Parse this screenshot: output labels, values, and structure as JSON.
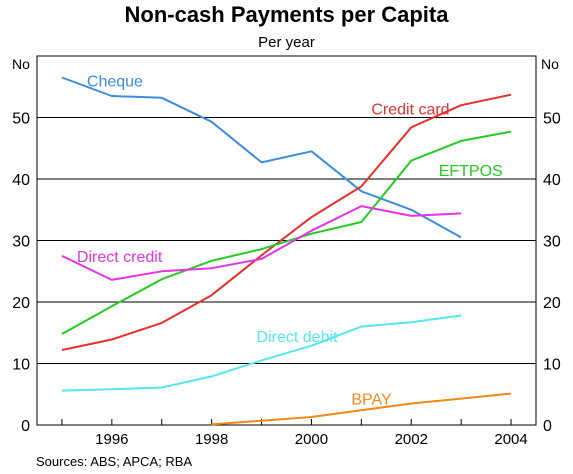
{
  "title": "Non-cash Payments per Capita",
  "subtitle": "Per year",
  "unit_left": "No",
  "unit_right": "No",
  "source": "Sources: ABS; APCA; RBA",
  "chart_data": {
    "type": "line",
    "title": "Non-cash Payments per Capita",
    "subtitle": "Per year",
    "xlabel": "",
    "ylabel": "No",
    "xlim": [
      1994.5,
      2004.5
    ],
    "ylim": [
      0,
      60
    ],
    "yticks": [
      0,
      10,
      20,
      30,
      40,
      50
    ],
    "xticks": [
      1996,
      1998,
      2000,
      2002,
      2004
    ],
    "grid": true,
    "legend": "inline labels",
    "series": [
      {
        "name": "Cheque",
        "color": "#3b8de0",
        "x": [
          1995,
          1996,
          1997,
          1998,
          1999,
          2000,
          2001,
          2002,
          2003
        ],
        "values": [
          56.5,
          53.5,
          53.2,
          49.3,
          42.7,
          44.5,
          38,
          35,
          30.5
        ]
      },
      {
        "name": "Credit card",
        "color": "#e8302c",
        "x": [
          1995,
          1996,
          1997,
          1998,
          1999,
          2000,
          2001,
          2002,
          2003,
          2004
        ],
        "values": [
          12.2,
          13.9,
          16.6,
          21.1,
          27.6,
          33.8,
          38.8,
          48.4,
          52,
          53.7
        ]
      },
      {
        "name": "EFTPOS",
        "color": "#22cc22",
        "x": [
          1995,
          1996,
          1997,
          1998,
          1999,
          2000,
          2001,
          2002,
          2003,
          2004
        ],
        "values": [
          14.8,
          19.3,
          23.7,
          26.7,
          28.6,
          31.1,
          33,
          43,
          46.2,
          47.7
        ]
      },
      {
        "name": "Direct credit",
        "color": "#e633e6",
        "x": [
          1995,
          1996,
          1997,
          1998,
          1999,
          2000,
          2001,
          2002,
          2003
        ],
        "values": [
          27.5,
          23.6,
          25,
          25.5,
          27,
          31.6,
          35.6,
          34,
          34.4
        ]
      },
      {
        "name": "Direct debit",
        "color": "#55e6f0",
        "x": [
          1995,
          1996,
          1997,
          1998,
          1999,
          2000,
          2001,
          2002,
          2003
        ],
        "values": [
          5.6,
          5.8,
          6.1,
          7.9,
          10.5,
          12.9,
          16,
          16.7,
          17.8
        ]
      },
      {
        "name": "BPAY",
        "color": "#f08a1c",
        "x": [
          1998,
          1999,
          2000,
          2001,
          2002,
          2003,
          2004
        ],
        "values": [
          0.1,
          0.7,
          1.3,
          2.4,
          3.5,
          4.3,
          5.1
        ]
      }
    ]
  }
}
